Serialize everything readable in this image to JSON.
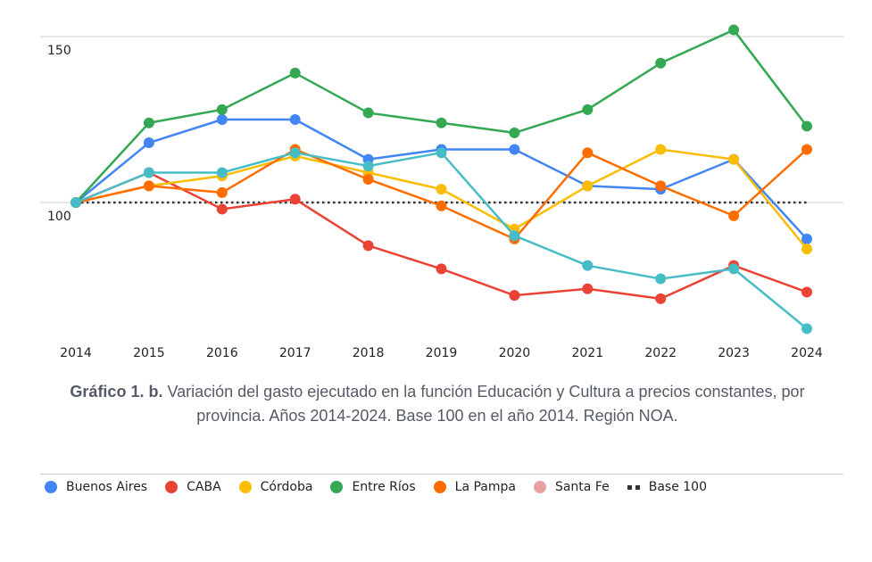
{
  "chart_data": {
    "type": "line",
    "title": "",
    "xlabel": "",
    "ylabel": "",
    "x": [
      "2014",
      "2015",
      "2016",
      "2017",
      "2018",
      "2019",
      "2020",
      "2021",
      "2022",
      "2023",
      "2024"
    ],
    "y_ticks": [
      "100",
      "150"
    ],
    "y_tick_values": [
      100,
      150
    ],
    "ylim": [
      60,
      152
    ],
    "grid": true,
    "legend_position": "bottom",
    "series": [
      {
        "name": "Buenos Aires",
        "color": "#4285F4",
        "values": [
          100,
          118,
          125,
          125,
          113,
          116,
          116,
          105,
          104,
          113,
          89
        ]
      },
      {
        "name": "CABA",
        "color": "#EA4335",
        "values": [
          100,
          109,
          98,
          101,
          87,
          80,
          72,
          74,
          71,
          81,
          73
        ]
      },
      {
        "name": "Córdoba",
        "color": "#FBBC04",
        "values": [
          100,
          105,
          108,
          114,
          109,
          104,
          92,
          105,
          116,
          113,
          86
        ]
      },
      {
        "name": "Entre Ríos",
        "color": "#34A853",
        "values": [
          100,
          124,
          128,
          139,
          127,
          124,
          121,
          128,
          142,
          152,
          123
        ]
      },
      {
        "name": "La Pampa",
        "color": "#FF6D01",
        "values": [
          100,
          105,
          103,
          116,
          107,
          99,
          89,
          115,
          105,
          96,
          116
        ]
      },
      {
        "name": "Santa Fe",
        "color": "#46BDC6",
        "legend_color": "#E8A0A0",
        "values": [
          100,
          109,
          109,
          115,
          111,
          115,
          90,
          81,
          77,
          80,
          62
        ]
      }
    ],
    "baseline": {
      "name": "Base 100",
      "value": 100,
      "color": "#333333"
    }
  },
  "caption": {
    "bold": "Gráfico 1. b.",
    "text": " Variación del gasto ejecutado en la función Educación y Cultura a precios constantes, por provincia. Años 2014-2024. Base 100 en el año 2014. Región NOA."
  },
  "legend": {
    "items": [
      {
        "label": "Buenos Aires",
        "color": "#4285F4"
      },
      {
        "label": "CABA",
        "color": "#EA4335"
      },
      {
        "label": "Córdoba",
        "color": "#FBBC04"
      },
      {
        "label": "Entre Ríos",
        "color": "#34A853"
      },
      {
        "label": "La Pampa",
        "color": "#FF6D01"
      },
      {
        "label": "Santa Fe",
        "color": "#E8A0A0"
      }
    ],
    "baseline_label": "Base 100"
  }
}
